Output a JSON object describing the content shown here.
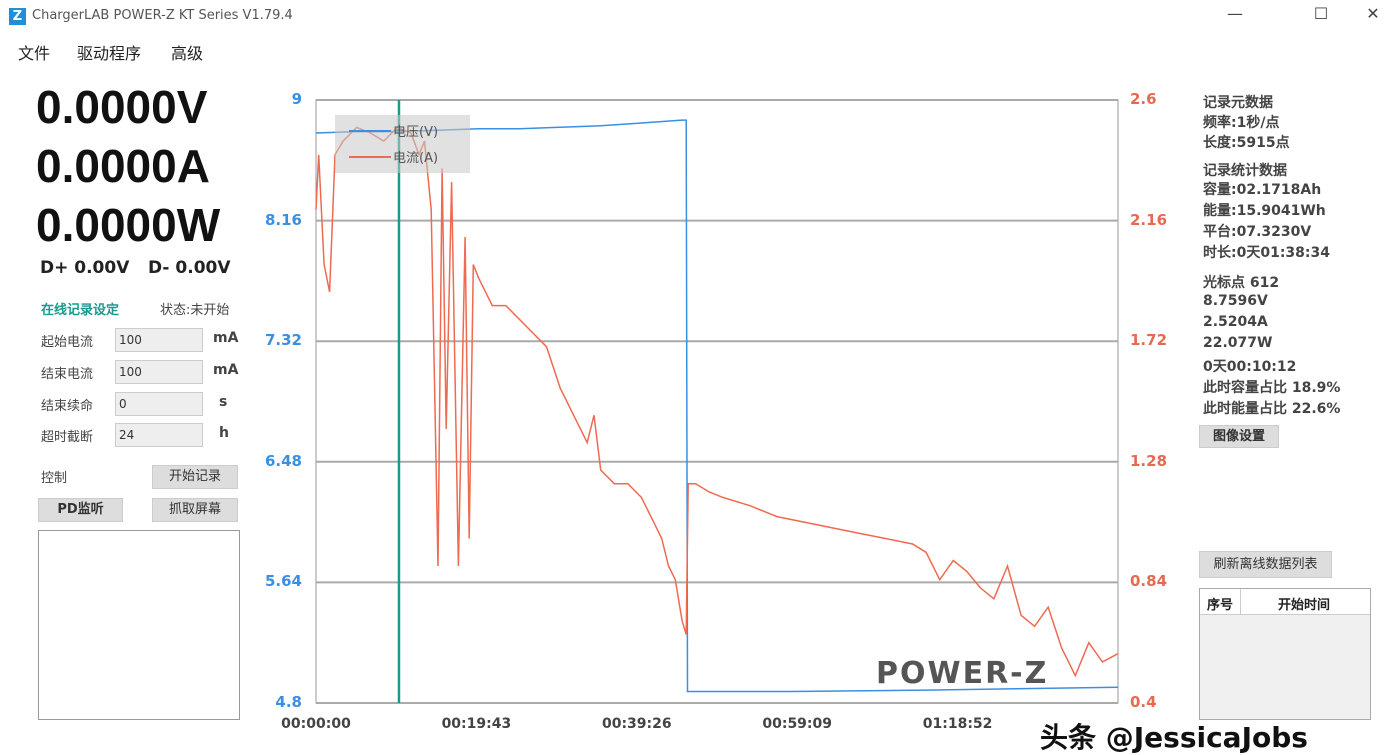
{
  "window": {
    "title": "ChargerLAB POWER-Z KT Series V1.79.4",
    "logo": "Z",
    "minimize": "—",
    "maximize": "☐",
    "close": "✕"
  },
  "menu": [
    "文件",
    "驱动程序",
    "高级"
  ],
  "readings": {
    "voltage": "0.0000V",
    "current": "0.0000A",
    "power": "0.0000W",
    "dplus": "D+ 0.00V",
    "dminus": "D- 0.00V"
  },
  "online": {
    "title": "在线记录设定",
    "status": "状态:未开始",
    "fields": [
      {
        "label": "起始电流",
        "value": "100",
        "unit": "mA"
      },
      {
        "label": "结束电流",
        "value": "100",
        "unit": "mA"
      },
      {
        "label": "结束续命",
        "value": "0",
        "unit": "s"
      },
      {
        "label": "超时截断",
        "value": "24",
        "unit": "h"
      }
    ],
    "control_label": "控制",
    "start_button": "开始记录",
    "pd_button": "PD监听",
    "capture_button": "抓取屏幕"
  },
  "right": {
    "meta_title": "记录元数据",
    "rate": "频率:1秒/点",
    "length": "长度:5915点",
    "stats_title": "记录统计数据",
    "capacity": "容量:02.1718Ah",
    "energy": "能量:15.9041Wh",
    "platform": "平台:07.3230V",
    "duration": "时长:0天01:38:34",
    "cursor_title": "光标点 612",
    "cursor_v": "8.7596V",
    "cursor_a": "2.5204A",
    "cursor_w": "22.077W",
    "cursor_t": "0天00:10:12",
    "cap_ratio": "此时容量占比 18.9%",
    "energy_ratio": "此时能量占比 22.6%",
    "image_settings": "图像设置",
    "refresh_button": "刷新离线数据列表",
    "table_headers": [
      "序号",
      "开始时间"
    ]
  },
  "watermark": "POWER-Z",
  "overlay_text": "头条 @JessicaJobs",
  "colors": {
    "voltage": "#3b8fe0",
    "current": "#ee6a50",
    "cursor": "#1a9a8e",
    "teal": "#1a9a8e"
  },
  "chart_data": {
    "type": "line",
    "x_range": [
      0,
      5915
    ],
    "x_unit": "s",
    "x_ticks": [
      {
        "v": 0,
        "label": "00:00:00"
      },
      {
        "v": 1183,
        "label": "00:19:43"
      },
      {
        "v": 2366,
        "label": "00:39:26"
      },
      {
        "v": 3549,
        "label": "00:59:09"
      },
      {
        "v": 4732,
        "label": "01:18:52"
      }
    ],
    "y_left": {
      "range": [
        4.8,
        9
      ],
      "ticks": [
        "9",
        "8.16",
        "7.32",
        "6.48",
        "5.64",
        "4.8"
      ]
    },
    "y_right": {
      "range": [
        0.4,
        2.6
      ],
      "ticks": [
        "2.6",
        "2.16",
        "1.72",
        "1.28",
        "0.84",
        "0.4"
      ]
    },
    "legend": [
      "电压(V)",
      "电流(A)"
    ],
    "cursor_x": 612,
    "series": [
      {
        "name": "电压(V)",
        "axis": "left",
        "x": [
          0,
          300,
          600,
          900,
          1200,
          1500,
          1800,
          2100,
          2400,
          2700,
          2730,
          2740,
          3500,
          4500,
          5915
        ],
        "y": [
          8.77,
          8.78,
          8.78,
          8.79,
          8.8,
          8.8,
          8.81,
          8.82,
          8.84,
          8.86,
          8.86,
          4.88,
          4.88,
          4.89,
          4.91
        ]
      },
      {
        "name": "电流(A)",
        "axis": "right",
        "x": [
          0,
          20,
          60,
          100,
          140,
          200,
          300,
          400,
          500,
          600,
          700,
          760,
          800,
          850,
          900,
          930,
          960,
          1000,
          1050,
          1100,
          1130,
          1160,
          1200,
          1250,
          1300,
          1400,
          1500,
          1600,
          1700,
          1800,
          1900,
          2000,
          2050,
          2100,
          2200,
          2300,
          2400,
          2500,
          2550,
          2600,
          2650,
          2700,
          2730,
          2745,
          2800,
          2900,
          3000,
          3200,
          3400,
          3600,
          3800,
          4000,
          4200,
          4400,
          4500,
          4600,
          4700,
          4800,
          4900,
          5000,
          5100,
          5200,
          5300,
          5400,
          5500,
          5600,
          5700,
          5800,
          5915
        ],
        "y": [
          2.2,
          2.4,
          2.0,
          1.9,
          2.4,
          2.45,
          2.5,
          2.48,
          2.45,
          2.5,
          2.48,
          2.4,
          2.45,
          2.2,
          0.9,
          2.35,
          1.4,
          2.3,
          0.9,
          2.1,
          1.0,
          2.0,
          1.95,
          1.9,
          1.85,
          1.85,
          1.8,
          1.75,
          1.7,
          1.55,
          1.45,
          1.35,
          1.45,
          1.25,
          1.2,
          1.2,
          1.15,
          1.05,
          1.0,
          0.9,
          0.85,
          0.7,
          0.65,
          1.2,
          1.2,
          1.17,
          1.15,
          1.12,
          1.08,
          1.06,
          1.04,
          1.02,
          1.0,
          0.98,
          0.95,
          0.85,
          0.92,
          0.88,
          0.82,
          0.78,
          0.9,
          0.72,
          0.68,
          0.75,
          0.6,
          0.5,
          0.62,
          0.55,
          0.58
        ]
      }
    ]
  }
}
